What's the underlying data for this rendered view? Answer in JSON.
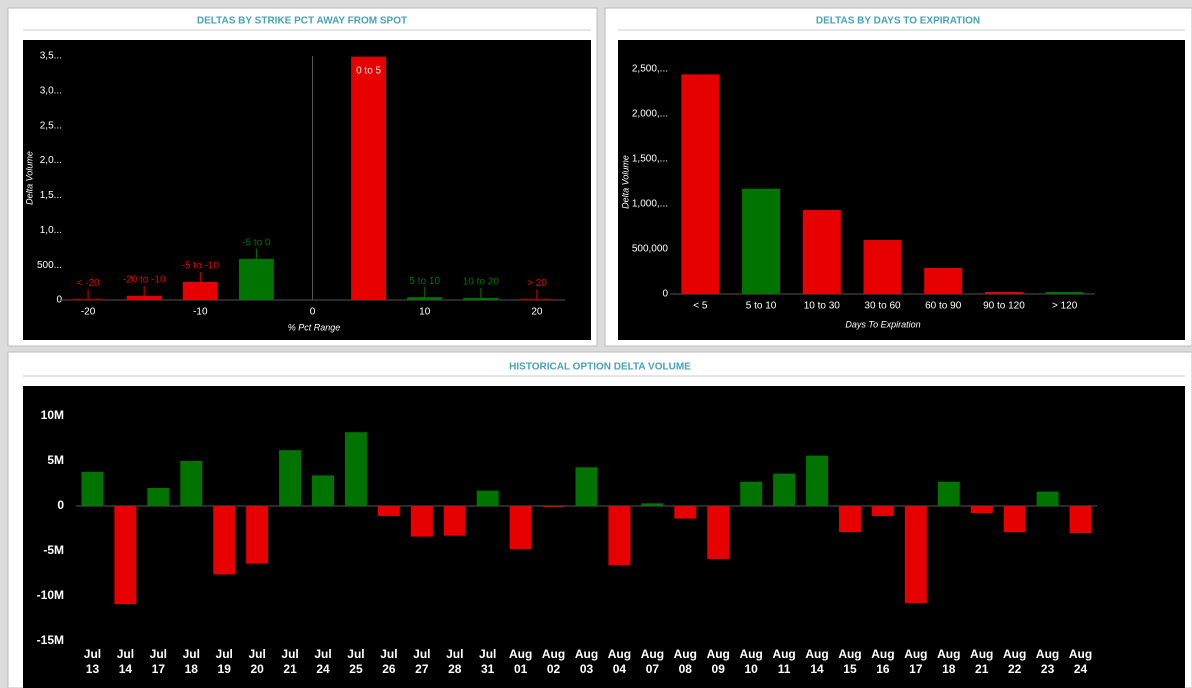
{
  "chart_data": [
    {
      "type": "bar",
      "title": "DELTAS BY STRIKE PCT AWAY FROM SPOT",
      "x_label": "% Pct Range",
      "y_label": "Delta Volume",
      "x": [
        -20,
        -15,
        -10,
        -5,
        5,
        10,
        15,
        20
      ],
      "labels": [
        "< -20",
        "-20 to -10",
        "-5 to -10",
        "-5 to 0",
        "0 to 5",
        "5 to 10",
        "10 to 20",
        "> 20"
      ],
      "values": [
        10000,
        60000,
        260000,
        590000,
        3490000,
        40000,
        30000,
        10000
      ],
      "colors": [
        "#e60000",
        "#e60000",
        "#e60000",
        "#007300",
        "#e60000",
        "#007300",
        "#007300",
        "#e60000"
      ],
      "xlim": [
        -22.5,
        22.5
      ],
      "xticks": [
        -20,
        -10,
        0,
        10,
        20
      ],
      "ylim": [
        0,
        3500000
      ],
      "yticks": [
        0,
        {
          "value": 500000,
          "label": "500..."
        },
        {
          "value": 1000000,
          "label": "1,0..."
        },
        {
          "value": 1500000,
          "label": "1,5..."
        },
        {
          "value": 2000000,
          "label": "2,0..."
        },
        {
          "value": 2500000,
          "label": "2,5..."
        },
        {
          "value": 3000000,
          "label": "3,0..."
        },
        {
          "value": 3500000,
          "label": "3,5..."
        }
      ]
    },
    {
      "type": "bar",
      "title": "DELTAS BY DAYS TO EXPIRATION",
      "x_label": "Days To Expiration",
      "y_label": "Delta Volume",
      "categories": [
        "< 5",
        "5 to 10",
        "10 to 30",
        "30 to 60",
        "60 to 90",
        "90 to 120",
        "> 120"
      ],
      "values": [
        2440000,
        1170000,
        933000,
        600000,
        289000,
        22000,
        22000
      ],
      "colors": [
        "#e60000",
        "#007300",
        "#e60000",
        "#e60000",
        "#e60000",
        "#e60000",
        "#007300"
      ],
      "ylim": [
        0,
        2800000
      ],
      "yticks": [
        0,
        {
          "value": 500000,
          "label": "500,000"
        },
        {
          "value": 1000000,
          "label": "1,000,..."
        },
        {
          "value": 1500000,
          "label": "1,500,..."
        },
        {
          "value": 2000000,
          "label": "2,000,..."
        },
        {
          "value": 2500000,
          "label": "2,500,..."
        }
      ]
    },
    {
      "type": "bar",
      "title": "HISTORICAL OPTION DELTA VOLUME",
      "categories": [
        "Jul 13",
        "Jul 14",
        "Jul 17",
        "Jul 18",
        "Jul 19",
        "Jul 20",
        "Jul 21",
        "Jul 24",
        "Jul 25",
        "Jul 26",
        "Jul 27",
        "Jul 28",
        "Jul 31",
        "Aug 01",
        "Aug 02",
        "Aug 03",
        "Aug 04",
        "Aug 07",
        "Aug 08",
        "Aug 09",
        "Aug 10",
        "Aug 11",
        "Aug 14",
        "Aug 15",
        "Aug 16",
        "Aug 17",
        "Aug 18",
        "Aug 21",
        "Aug 22",
        "Aug 23",
        "Aug 24"
      ],
      "values": [
        3800000,
        -10900000,
        2000000,
        5000000,
        -7600000,
        -6400000,
        6200000,
        3400000,
        8200000,
        -1100000,
        -3400000,
        -3300000,
        1700000,
        -4800000,
        -100000,
        4300000,
        -6600000,
        300000,
        -1400000,
        -5900000,
        2700000,
        3600000,
        5600000,
        -2900000,
        -1100000,
        -10800000,
        2700000,
        -800000,
        -2900000,
        1600000,
        -3000000
      ],
      "positive_color": "#007300",
      "negative_color": "#e60000",
      "ylim": [
        -15000000,
        11000000
      ],
      "yticks": [
        {
          "value": -15000000,
          "label": "-15M"
        },
        {
          "value": -10000000,
          "label": "-10M"
        },
        {
          "value": -5000000,
          "label": "-5M"
        },
        0,
        {
          "value": 5000000,
          "label": "5M"
        },
        {
          "value": 10000000,
          "label": "10M"
        }
      ]
    }
  ]
}
